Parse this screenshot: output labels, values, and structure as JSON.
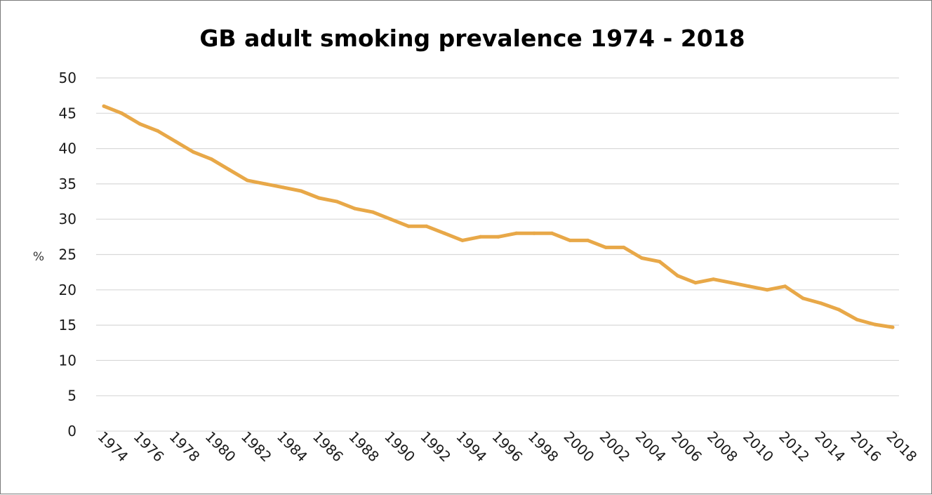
{
  "chart_data": {
    "type": "line",
    "title": "GB adult smoking prevalence 1974 - 2018",
    "xlabel": "",
    "ylabel": "%",
    "ylim": [
      0,
      50
    ],
    "yticks": [
      0,
      5,
      10,
      15,
      20,
      25,
      30,
      35,
      40,
      45,
      50
    ],
    "xticks": [
      "1974",
      "1976",
      "1978",
      "1980",
      "1982",
      "1984",
      "1986",
      "1988",
      "1990",
      "1992",
      "1994",
      "1996",
      "1998",
      "2000",
      "2002",
      "2004",
      "2006",
      "2008",
      "2010",
      "2012",
      "2014",
      "2016",
      "2018"
    ],
    "grid": true,
    "legend": "none",
    "line_color": "#E8A848",
    "x": [
      1974,
      1975,
      1976,
      1977,
      1978,
      1979,
      1980,
      1981,
      1982,
      1983,
      1984,
      1985,
      1986,
      1987,
      1988,
      1989,
      1990,
      1991,
      1992,
      1993,
      1994,
      1995,
      1996,
      1997,
      1998,
      1999,
      2000,
      2001,
      2002,
      2003,
      2004,
      2005,
      2006,
      2007,
      2008,
      2009,
      2010,
      2011,
      2012,
      2013,
      2014,
      2015,
      2016,
      2017,
      2018
    ],
    "values": [
      46,
      45,
      43.5,
      42.5,
      41,
      39.5,
      38.5,
      37,
      35.5,
      35,
      34.5,
      34,
      33,
      32.5,
      31.5,
      31,
      30,
      29,
      29,
      28,
      27,
      27.5,
      27.5,
      28,
      28,
      28,
      27,
      27,
      26,
      26,
      24.5,
      24,
      22,
      21,
      21.5,
      21,
      20.5,
      20,
      20.5,
      18.8,
      18.1,
      17.2,
      15.8,
      15.1,
      14.7
    ]
  }
}
